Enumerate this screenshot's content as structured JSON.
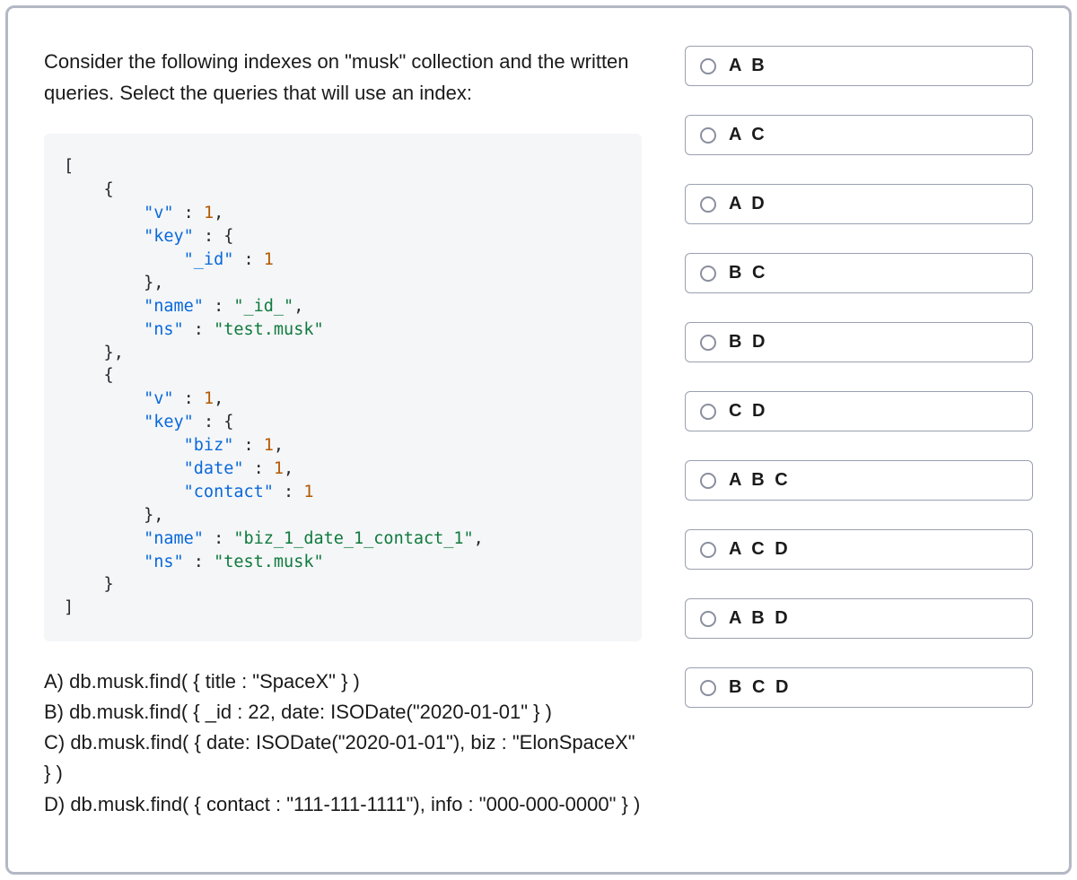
{
  "question": {
    "prompt": "Consider the following indexes on \"musk\" collection and the written queries. Select the queries that will use an index:"
  },
  "code": {
    "tokens": [
      {
        "t": "[",
        "c": "plain"
      },
      {
        "t": "\n",
        "c": "plain"
      },
      {
        "t": "    {",
        "c": "plain"
      },
      {
        "t": "\n",
        "c": "plain"
      },
      {
        "t": "        ",
        "c": "plain"
      },
      {
        "t": "\"v\"",
        "c": "key"
      },
      {
        "t": " : ",
        "c": "plain"
      },
      {
        "t": "1",
        "c": "num"
      },
      {
        "t": ",",
        "c": "plain"
      },
      {
        "t": "\n",
        "c": "plain"
      },
      {
        "t": "        ",
        "c": "plain"
      },
      {
        "t": "\"key\"",
        "c": "key"
      },
      {
        "t": " : {",
        "c": "plain"
      },
      {
        "t": "\n",
        "c": "plain"
      },
      {
        "t": "            ",
        "c": "plain"
      },
      {
        "t": "\"_id\"",
        "c": "key"
      },
      {
        "t": " : ",
        "c": "plain"
      },
      {
        "t": "1",
        "c": "num"
      },
      {
        "t": "\n",
        "c": "plain"
      },
      {
        "t": "        },",
        "c": "plain"
      },
      {
        "t": "\n",
        "c": "plain"
      },
      {
        "t": "        ",
        "c": "plain"
      },
      {
        "t": "\"name\"",
        "c": "key"
      },
      {
        "t": " : ",
        "c": "plain"
      },
      {
        "t": "\"_id_\"",
        "c": "str"
      },
      {
        "t": ",",
        "c": "plain"
      },
      {
        "t": "\n",
        "c": "plain"
      },
      {
        "t": "        ",
        "c": "plain"
      },
      {
        "t": "\"ns\"",
        "c": "key"
      },
      {
        "t": " : ",
        "c": "plain"
      },
      {
        "t": "\"test.musk\"",
        "c": "str"
      },
      {
        "t": "\n",
        "c": "plain"
      },
      {
        "t": "    },",
        "c": "plain"
      },
      {
        "t": "\n",
        "c": "plain"
      },
      {
        "t": "    {",
        "c": "plain"
      },
      {
        "t": "\n",
        "c": "plain"
      },
      {
        "t": "        ",
        "c": "plain"
      },
      {
        "t": "\"v\"",
        "c": "key"
      },
      {
        "t": " : ",
        "c": "plain"
      },
      {
        "t": "1",
        "c": "num"
      },
      {
        "t": ",",
        "c": "plain"
      },
      {
        "t": "\n",
        "c": "plain"
      },
      {
        "t": "        ",
        "c": "plain"
      },
      {
        "t": "\"key\"",
        "c": "key"
      },
      {
        "t": " : {",
        "c": "plain"
      },
      {
        "t": "\n",
        "c": "plain"
      },
      {
        "t": "            ",
        "c": "plain"
      },
      {
        "t": "\"biz\"",
        "c": "key"
      },
      {
        "t": " : ",
        "c": "plain"
      },
      {
        "t": "1",
        "c": "num"
      },
      {
        "t": ",",
        "c": "plain"
      },
      {
        "t": "\n",
        "c": "plain"
      },
      {
        "t": "            ",
        "c": "plain"
      },
      {
        "t": "\"date\"",
        "c": "key"
      },
      {
        "t": " : ",
        "c": "plain"
      },
      {
        "t": "1",
        "c": "num"
      },
      {
        "t": ",",
        "c": "plain"
      },
      {
        "t": "\n",
        "c": "plain"
      },
      {
        "t": "            ",
        "c": "plain"
      },
      {
        "t": "\"contact\"",
        "c": "key"
      },
      {
        "t": " : ",
        "c": "plain"
      },
      {
        "t": "1",
        "c": "num"
      },
      {
        "t": "\n",
        "c": "plain"
      },
      {
        "t": "        },",
        "c": "plain"
      },
      {
        "t": "\n",
        "c": "plain"
      },
      {
        "t": "        ",
        "c": "plain"
      },
      {
        "t": "\"name\"",
        "c": "key"
      },
      {
        "t": " : ",
        "c": "plain"
      },
      {
        "t": "\"biz_1_date_1_contact_1\"",
        "c": "str"
      },
      {
        "t": ",",
        "c": "plain"
      },
      {
        "t": "\n",
        "c": "plain"
      },
      {
        "t": "        ",
        "c": "plain"
      },
      {
        "t": "\"ns\"",
        "c": "key"
      },
      {
        "t": " : ",
        "c": "plain"
      },
      {
        "t": "\"test.musk\"",
        "c": "str"
      },
      {
        "t": "\n",
        "c": "plain"
      },
      {
        "t": "    }",
        "c": "plain"
      },
      {
        "t": "\n",
        "c": "plain"
      },
      {
        "t": "]",
        "c": "plain"
      }
    ]
  },
  "answers": {
    "a": "A) db.musk.find( { title : \"SpaceX\" } )",
    "b": "B) db.musk.find( { _id : 22, date: ISODate(\"2020-01-01\" } )",
    "c": "C) db.musk.find( { date: ISODate(\"2020-01-01\"), biz : \"ElonSpaceX\" } )",
    "d": "D) db.musk.find( { contact : \"111-111-1111\"), info : \"000-000-0000\" } )"
  },
  "options": [
    {
      "label": "A B"
    },
    {
      "label": "A C"
    },
    {
      "label": "A D"
    },
    {
      "label": "B C"
    },
    {
      "label": "B D"
    },
    {
      "label": "C D"
    },
    {
      "label": "A B C"
    },
    {
      "label": "A C D"
    },
    {
      "label": "A B D"
    },
    {
      "label": "B C D"
    }
  ],
  "styling": {
    "border_color": "#b4b8c5",
    "code_bg": "#f5f6f8",
    "tok_str_color": "#0f7a3d",
    "tok_key_color": "#0969da",
    "tok_num_color": "#b35900",
    "text_color": "#1a1a1a",
    "radio_border": "#8a8f9e",
    "option_border": "#9aa0b0"
  }
}
